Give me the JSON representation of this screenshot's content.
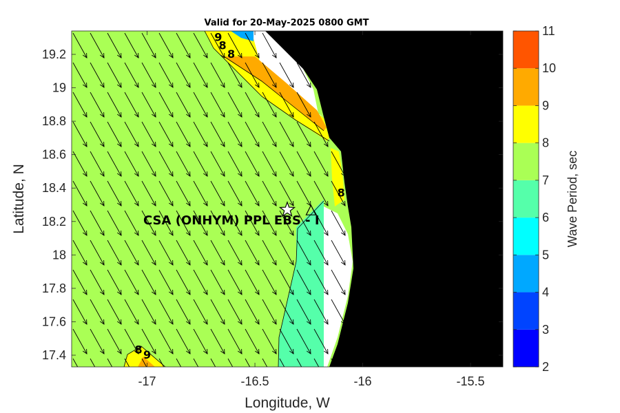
{
  "colors": {
    "levels": [
      "#0000ff",
      "#0044ff",
      "#00a8ff",
      "#00ffff",
      "#55ffaa",
      "#aaff55",
      "#ffff00",
      "#ffaa00",
      "#ff5500"
    ],
    "land": "#000000",
    "no_data": "#ffffff",
    "arrows": "#000000"
  },
  "chart_data": {
    "type": "heatmap",
    "title": "Valid for 20-May-2025 0800 GMT",
    "xlabel": "Longitude, W",
    "ylabel": "Latitude, N",
    "colorbar_label": "Wave Period, sec",
    "xlim": [
      -17.35,
      -15.35
    ],
    "ylim": [
      17.33,
      19.34
    ],
    "x_ticks": [
      -17,
      -16.5,
      -16,
      -15.5
    ],
    "x_tick_labels": [
      "-17",
      "-16.5",
      "-16",
      "-15.5"
    ],
    "y_ticks": [
      17.4,
      17.6,
      17.8,
      18,
      18.2,
      18.4,
      18.6,
      18.8,
      19,
      19.2
    ],
    "y_tick_labels": [
      "17.4",
      "17.6",
      "17.8",
      "18",
      "18.2",
      "18.4",
      "18.6",
      "18.8",
      "19",
      "19.2"
    ],
    "colorbar_levels": [
      2,
      3,
      4,
      5,
      6,
      7,
      8,
      9,
      10,
      11
    ],
    "colorbar_tick_labels": [
      "2",
      "3",
      "4",
      "5",
      "6",
      "7",
      "8",
      "9",
      "10",
      "11"
    ],
    "dominant_period_offshore": "7-8",
    "nearshore_period": "6-7",
    "contour_labels": [
      {
        "text": "9",
        "lon": -16.67,
        "lat": 19.28
      },
      {
        "text": "8",
        "lon": -16.65,
        "lat": 19.23
      },
      {
        "text": "8",
        "lon": -16.61,
        "lat": 19.18
      },
      {
        "text": "8",
        "lon": -16.1,
        "lat": 18.35
      },
      {
        "text": "8",
        "lon": -17.04,
        "lat": 17.41
      },
      {
        "text": "9",
        "lon": -17.0,
        "lat": 17.38
      }
    ],
    "site": {
      "label": "CSA (ONHYM) PPL EBS  - I",
      "star_lon": -16.35,
      "star_lat": 18.27,
      "triangle_lon": -16.24,
      "triangle_lat": 18.26
    },
    "wave_direction": "from NW toward SE (~ -60° from east)"
  }
}
